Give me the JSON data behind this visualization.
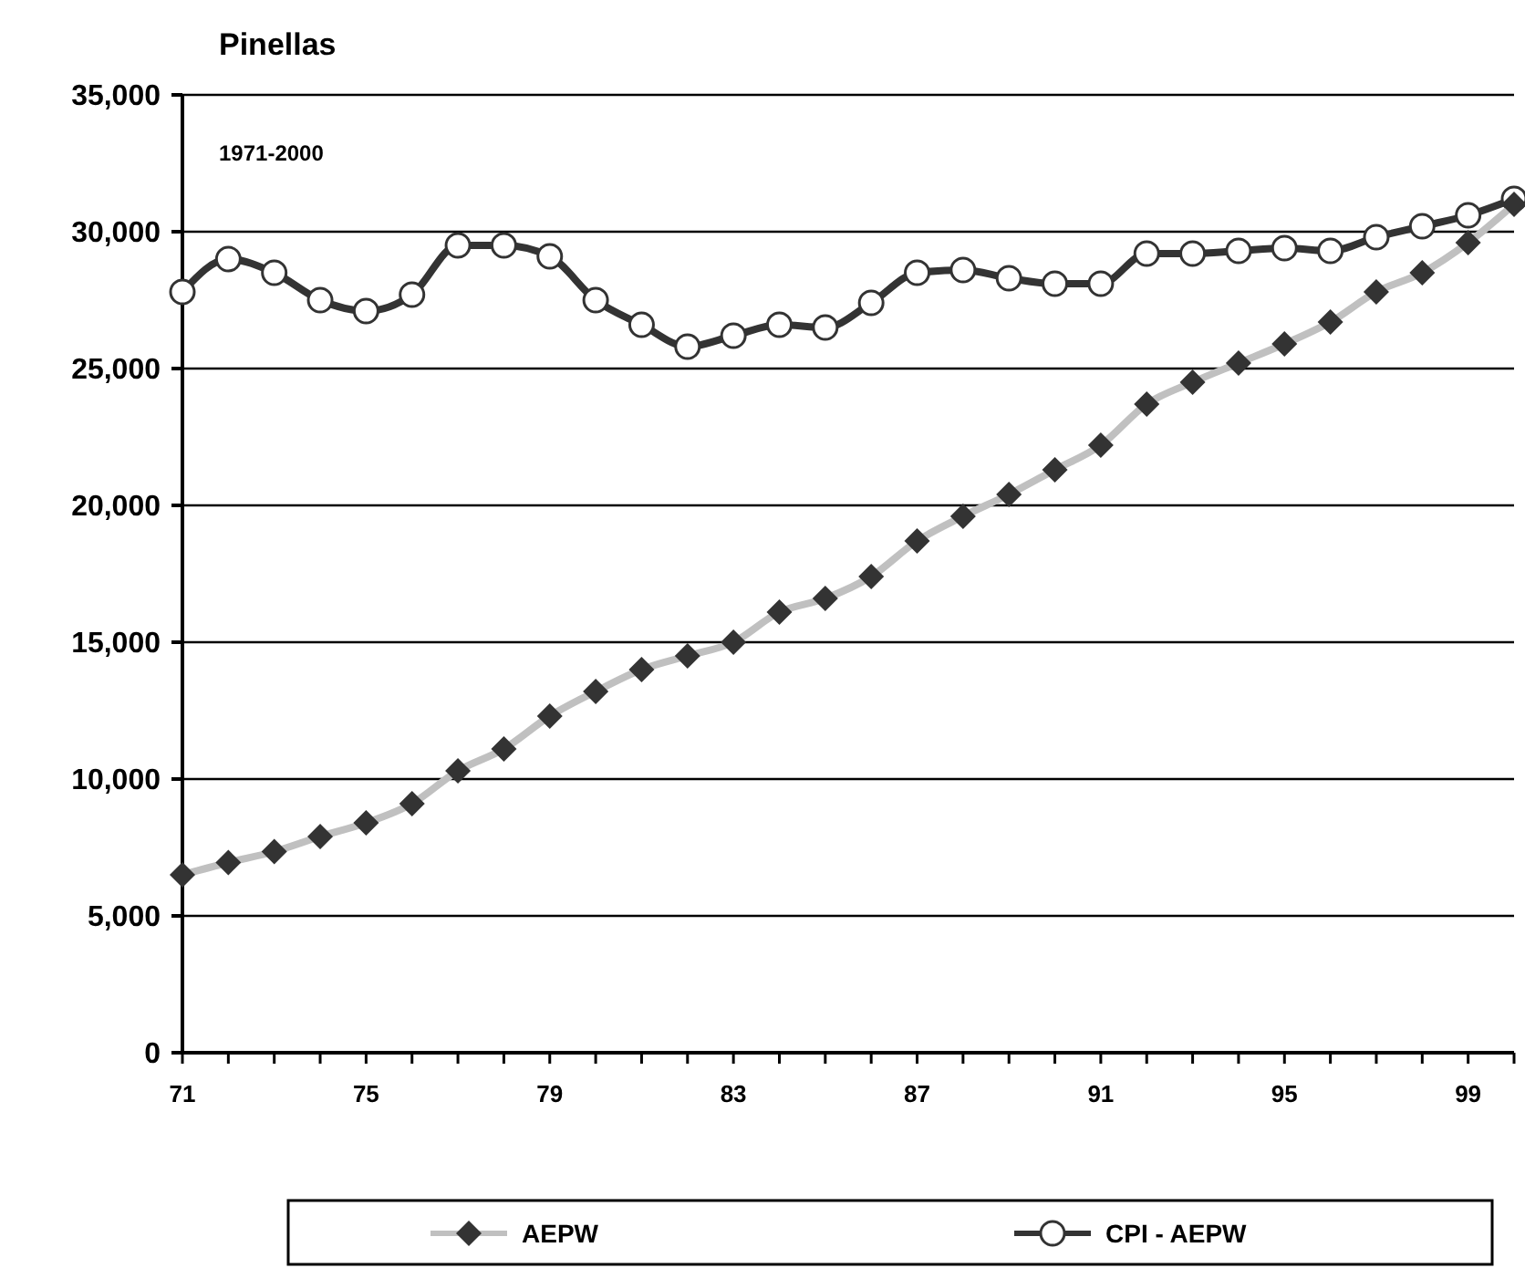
{
  "chart_data": {
    "type": "line",
    "title": "Pinellas",
    "annotations": [
      "1971-2000"
    ],
    "x": [
      71,
      72,
      73,
      74,
      75,
      76,
      77,
      78,
      79,
      80,
      81,
      82,
      83,
      84,
      85,
      86,
      87,
      88,
      89,
      90,
      91,
      92,
      93,
      94,
      95,
      96,
      97,
      98,
      99,
      100
    ],
    "xlim": [
      71,
      100
    ],
    "xticks": [
      71,
      {
        "value": 72,
        "label": null
      },
      {
        "value": 73,
        "label": null
      },
      {
        "value": 74,
        "label": null
      },
      75,
      {
        "value": 76,
        "label": null
      },
      {
        "value": 77,
        "label": null
      },
      {
        "value": 78,
        "label": null
      },
      79,
      {
        "value": 80,
        "label": null
      },
      {
        "value": 81,
        "label": null
      },
      {
        "value": 82,
        "label": null
      },
      83,
      {
        "value": 84,
        "label": null
      },
      {
        "value": 85,
        "label": null
      },
      {
        "value": 86,
        "label": null
      },
      87,
      {
        "value": 88,
        "label": null
      },
      {
        "value": 89,
        "label": null
      },
      {
        "value": 90,
        "label": null
      },
      91,
      {
        "value": 92,
        "label": null
      },
      {
        "value": 93,
        "label": null
      },
      {
        "value": 94,
        "label": null
      },
      95,
      {
        "value": 96,
        "label": null
      },
      {
        "value": 97,
        "label": null
      },
      {
        "value": 98,
        "label": null
      },
      99,
      {
        "value": 100,
        "label": null
      }
    ],
    "ylim": [
      0,
      35000
    ],
    "yticks": [
      {
        "value": 0,
        "label": "0"
      },
      {
        "value": 5000,
        "label": "5,000"
      },
      {
        "value": 10000,
        "label": "10,000"
      },
      {
        "value": 15000,
        "label": "15,000"
      },
      {
        "value": 20000,
        "label": "20,000"
      },
      {
        "value": 25000,
        "label": "25,000"
      },
      {
        "value": 30000,
        "label": "30,000"
      },
      {
        "value": 35000,
        "label": "35,000"
      }
    ],
    "grid": "y",
    "legend": "bottom",
    "series": [
      {
        "name": "AEPW",
        "color": "#c0c0c0",
        "marker": "diamond",
        "values": [
          6500,
          6950,
          7350,
          7900,
          8400,
          9100,
          10300,
          11100,
          12300,
          13200,
          14000,
          14500,
          15000,
          16100,
          16600,
          17400,
          18700,
          19600,
          20400,
          21300,
          22200,
          23700,
          24500,
          25200,
          25900,
          26700,
          27800,
          28500,
          29600,
          31000
        ]
      },
      {
        "name": "CPI - AEPW",
        "color": "#333333",
        "marker": "circle",
        "values": [
          27800,
          29000,
          28500,
          27500,
          27100,
          27700,
          29500,
          29500,
          29100,
          27500,
          26600,
          25800,
          26200,
          26600,
          26500,
          27400,
          28500,
          28600,
          28300,
          28100,
          28100,
          29200,
          29200,
          29300,
          29400,
          29300,
          29800,
          30200,
          30600,
          31200
        ]
      }
    ]
  }
}
